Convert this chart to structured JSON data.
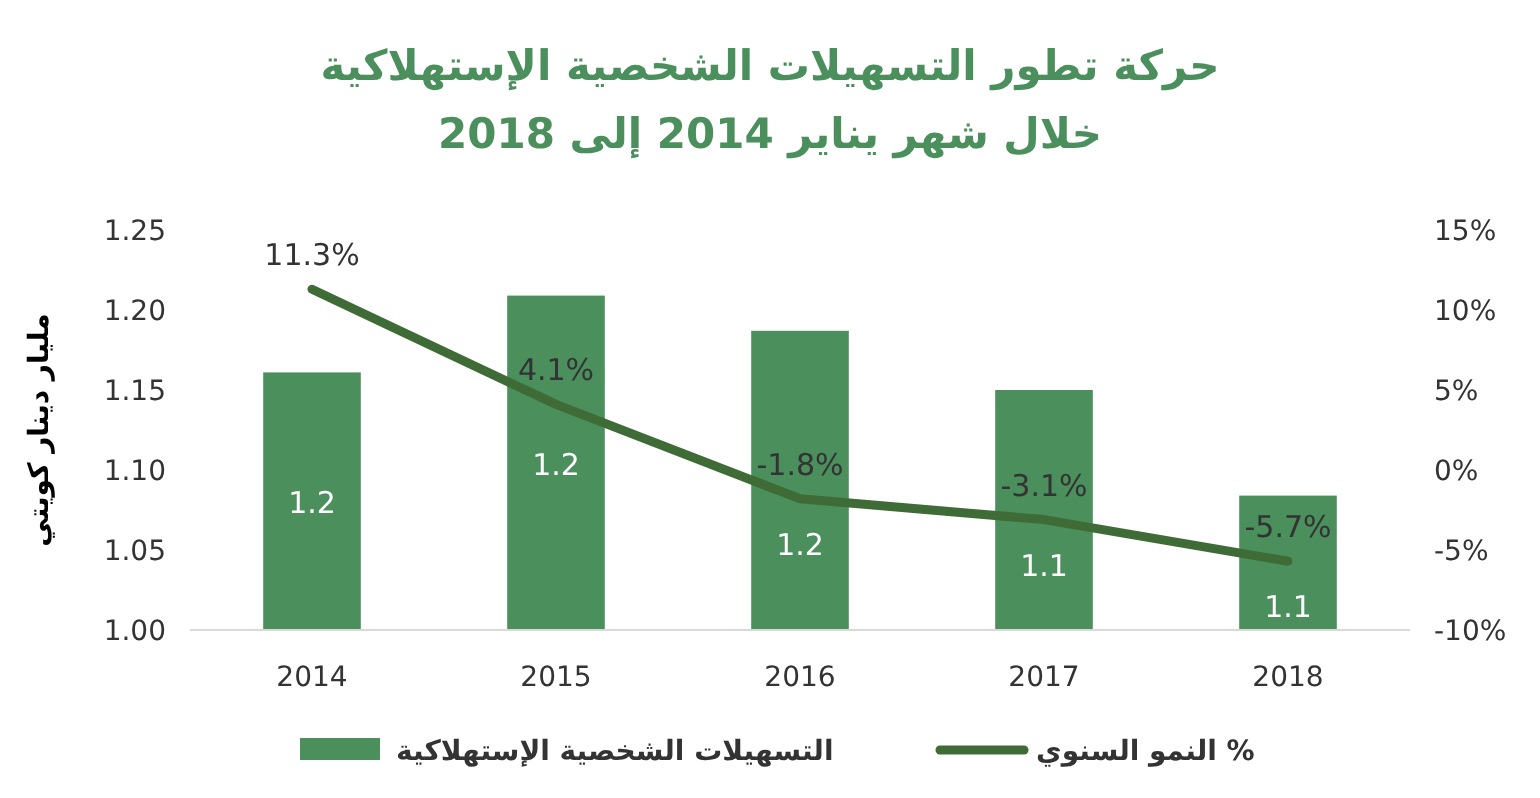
{
  "chart_data": {
    "type": "bar",
    "title": "حركة تطور التسهيلات الشخصية الإستهلاكية",
    "subtitle": "خلال شهر يناير 2014 إلى 2018",
    "ylabel": "مليار دينار كويتي",
    "categories": [
      "2014",
      "2015",
      "2016",
      "2017",
      "2018"
    ],
    "ylim": [
      1.0,
      1.25
    ],
    "yticks": [
      {
        "value": 1.0,
        "label": "1.00"
      },
      {
        "value": 1.05,
        "label": "1.05"
      },
      {
        "value": 1.1,
        "label": "1.10"
      },
      {
        "value": 1.15,
        "label": "1.15"
      },
      {
        "value": 1.2,
        "label": "1.20"
      },
      {
        "value": 1.25,
        "label": "1.25"
      }
    ],
    "y2lim": [
      -10,
      15
    ],
    "y2ticks": [
      {
        "value": -10,
        "label": "-10%"
      },
      {
        "value": -5,
        "label": "-5%"
      },
      {
        "value": 0,
        "label": "0%"
      },
      {
        "value": 5,
        "label": "5%"
      },
      {
        "value": 10,
        "label": "10%"
      },
      {
        "value": 15,
        "label": "15%"
      }
    ],
    "legend": "bottom",
    "series": [
      {
        "name": "التسهيلات الشخصية الإستهلاكية",
        "color": "#4a8f5c",
        "values": [
          1.161,
          1.209,
          1.187,
          1.15,
          1.084
        ],
        "value_labels": [
          "1.2",
          "1.2",
          "1.2",
          "1.1",
          "1.1"
        ]
      },
      {
        "name": "% النمو السنوي",
        "type": "line",
        "axis": "y2",
        "color": "#3f6b36",
        "values": [
          11.3,
          4.1,
          -1.8,
          -3.1,
          -5.7
        ],
        "value_labels": [
          "11.3%",
          "4.1%",
          "-1.8%",
          "-3.1%",
          "-5.7%"
        ]
      }
    ]
  }
}
